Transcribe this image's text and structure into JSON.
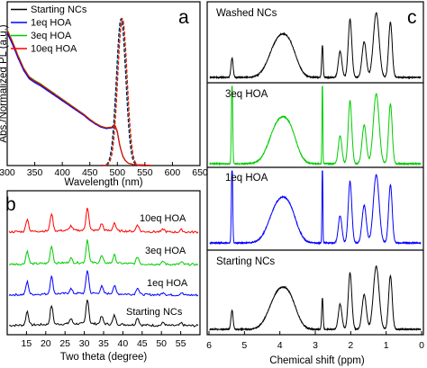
{
  "chart_data": [
    {
      "panel": "a",
      "type": "line",
      "xlabel": "Wavelength (nm)",
      "ylabel": "Abs./Normalized PL (a.u.)",
      "xlim": [
        300,
        650
      ],
      "xticks": [
        300,
        350,
        400,
        450,
        500,
        550,
        600,
        650
      ],
      "ylim": [
        0,
        1
      ],
      "legend": "top-left",
      "series": [
        {
          "name": "Starting NCs",
          "color": "#000000"
        },
        {
          "name": "1eq HOA",
          "color": "#0000ff"
        },
        {
          "name": "3eq HOA",
          "color": "#00cc00"
        },
        {
          "name": "10eq HOA",
          "color": "#ff0000"
        }
      ],
      "absorbance": {
        "x": [
          300,
          310,
          320,
          330,
          340,
          350,
          360,
          370,
          380,
          390,
          400,
          410,
          420,
          430,
          440,
          450,
          460,
          470,
          480,
          490,
          495,
          500,
          505,
          510,
          515,
          520,
          530,
          550,
          600,
          650
        ],
        "y": [
          0.88,
          0.8,
          0.71,
          0.63,
          0.575,
          0.55,
          0.53,
          0.505,
          0.48,
          0.455,
          0.43,
          0.405,
          0.38,
          0.355,
          0.33,
          0.3,
          0.275,
          0.255,
          0.245,
          0.25,
          0.27,
          0.22,
          0.12,
          0.06,
          0.03,
          0.015,
          0.006,
          0.003,
          0.002,
          0.002
        ]
      },
      "pl": {
        "center": 508,
        "fwhm": 20,
        "max": 1.0
      }
    },
    {
      "panel": "b",
      "type": "line",
      "xlabel": "Two theta (degree)",
      "xlim": [
        10,
        60
      ],
      "xticks": [
        15,
        20,
        25,
        30,
        35,
        40,
        45,
        50,
        55
      ],
      "series": [
        {
          "name": "Starting NCs",
          "color": "#000000"
        },
        {
          "name": "1eq HOA",
          "color": "#0000ff"
        },
        {
          "name": "3eq HOA",
          "color": "#00cc00"
        },
        {
          "name": "10eq HOA",
          "color": "#ff0000"
        }
      ],
      "peaks": [
        {
          "two_theta": 15.2,
          "intensity": 0.55
        },
        {
          "two_theta": 21.5,
          "intensity": 0.75
        },
        {
          "two_theta": 26.5,
          "intensity": 0.2
        },
        {
          "two_theta": 30.8,
          "intensity": 1.0
        },
        {
          "two_theta": 34.5,
          "intensity": 0.3
        },
        {
          "two_theta": 37.8,
          "intensity": 0.35
        },
        {
          "two_theta": 43.8,
          "intensity": 0.3
        },
        {
          "two_theta": 50.5,
          "intensity": 0.12
        },
        {
          "two_theta": 55.2,
          "intensity": 0.1
        }
      ]
    },
    {
      "panel": "c",
      "type": "line",
      "xlabel": "Chemical shift (ppm)",
      "xlim": [
        6,
        0
      ],
      "xticks": [
        6,
        5,
        4,
        3,
        2,
        1,
        0
      ],
      "series": [
        {
          "name": "Washed NCs",
          "color": "#000000"
        },
        {
          "name": "3eq HOA",
          "color": "#00cc00"
        },
        {
          "name": "1eq HOA",
          "color": "#0000ff"
        },
        {
          "name": "Starting NCs",
          "color": "#000000"
        }
      ],
      "signals": [
        {
          "ppm": 5.35,
          "width": 0.03,
          "height": 0.3
        },
        {
          "ppm": 4.05,
          "width": 0.25,
          "height": 0.55
        },
        {
          "ppm": 3.7,
          "width": 0.2,
          "height": 0.35
        },
        {
          "ppm": 2.8,
          "width": 0.02,
          "height": 0.5
        },
        {
          "ppm": 2.3,
          "width": 0.05,
          "height": 0.4
        },
        {
          "ppm": 2.02,
          "width": 0.05,
          "height": 0.9
        },
        {
          "ppm": 1.62,
          "width": 0.06,
          "height": 0.55
        },
        {
          "ppm": 1.28,
          "width": 0.08,
          "height": 1.0
        },
        {
          "ppm": 0.88,
          "width": 0.05,
          "height": 0.85
        }
      ]
    }
  ],
  "labels": {
    "panel_a": "a",
    "panel_b": "b",
    "panel_c": "c",
    "a_xlabel": "Wavelength (nm)",
    "a_ylabel": "Abs./Normalized PL (a.u.)",
    "b_xlabel": "Two theta (degree)",
    "c_xlabel": "Chemical shift (ppm)",
    "legend": [
      "Starting NCs",
      "1eq HOA",
      "3eq HOA",
      "10eq HOA"
    ],
    "b_traces": [
      "10eq HOA",
      "3eq HOA",
      "1eq HOA",
      "Starting NCs"
    ],
    "c_traces": [
      "Washed NCs",
      "3eq HOA",
      "1eq HOA",
      "Starting NCs"
    ]
  },
  "a_ticks": [
    "300",
    "350",
    "400",
    "450",
    "500",
    "550",
    "600",
    "650"
  ],
  "b_ticks": [
    "15",
    "20",
    "25",
    "30",
    "35",
    "40",
    "45",
    "50",
    "55"
  ],
  "c_ticks": [
    "6",
    "5",
    "4",
    "3",
    "2",
    "1",
    "0"
  ]
}
